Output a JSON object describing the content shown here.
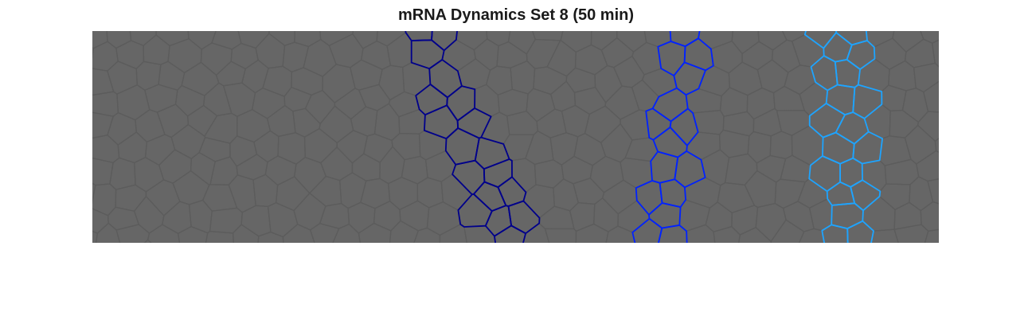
{
  "figure": {
    "title": "mRNA Dynamics Set 8 (50 min)"
  },
  "colors": {
    "background": "#ffffff",
    "tissue_fill": "#666666",
    "cell_edge": "#5c5c5c",
    "stripe_1": "#00008b",
    "stripe_2": "#0022ff",
    "stripe_3": "#1ea4ff"
  },
  "stripes": [
    {
      "name": "stripe-dark-blue",
      "color_key": "stripe_1"
    },
    {
      "name": "stripe-blue",
      "color_key": "stripe_2"
    },
    {
      "name": "stripe-light-blue",
      "color_key": "stripe_3"
    }
  ]
}
